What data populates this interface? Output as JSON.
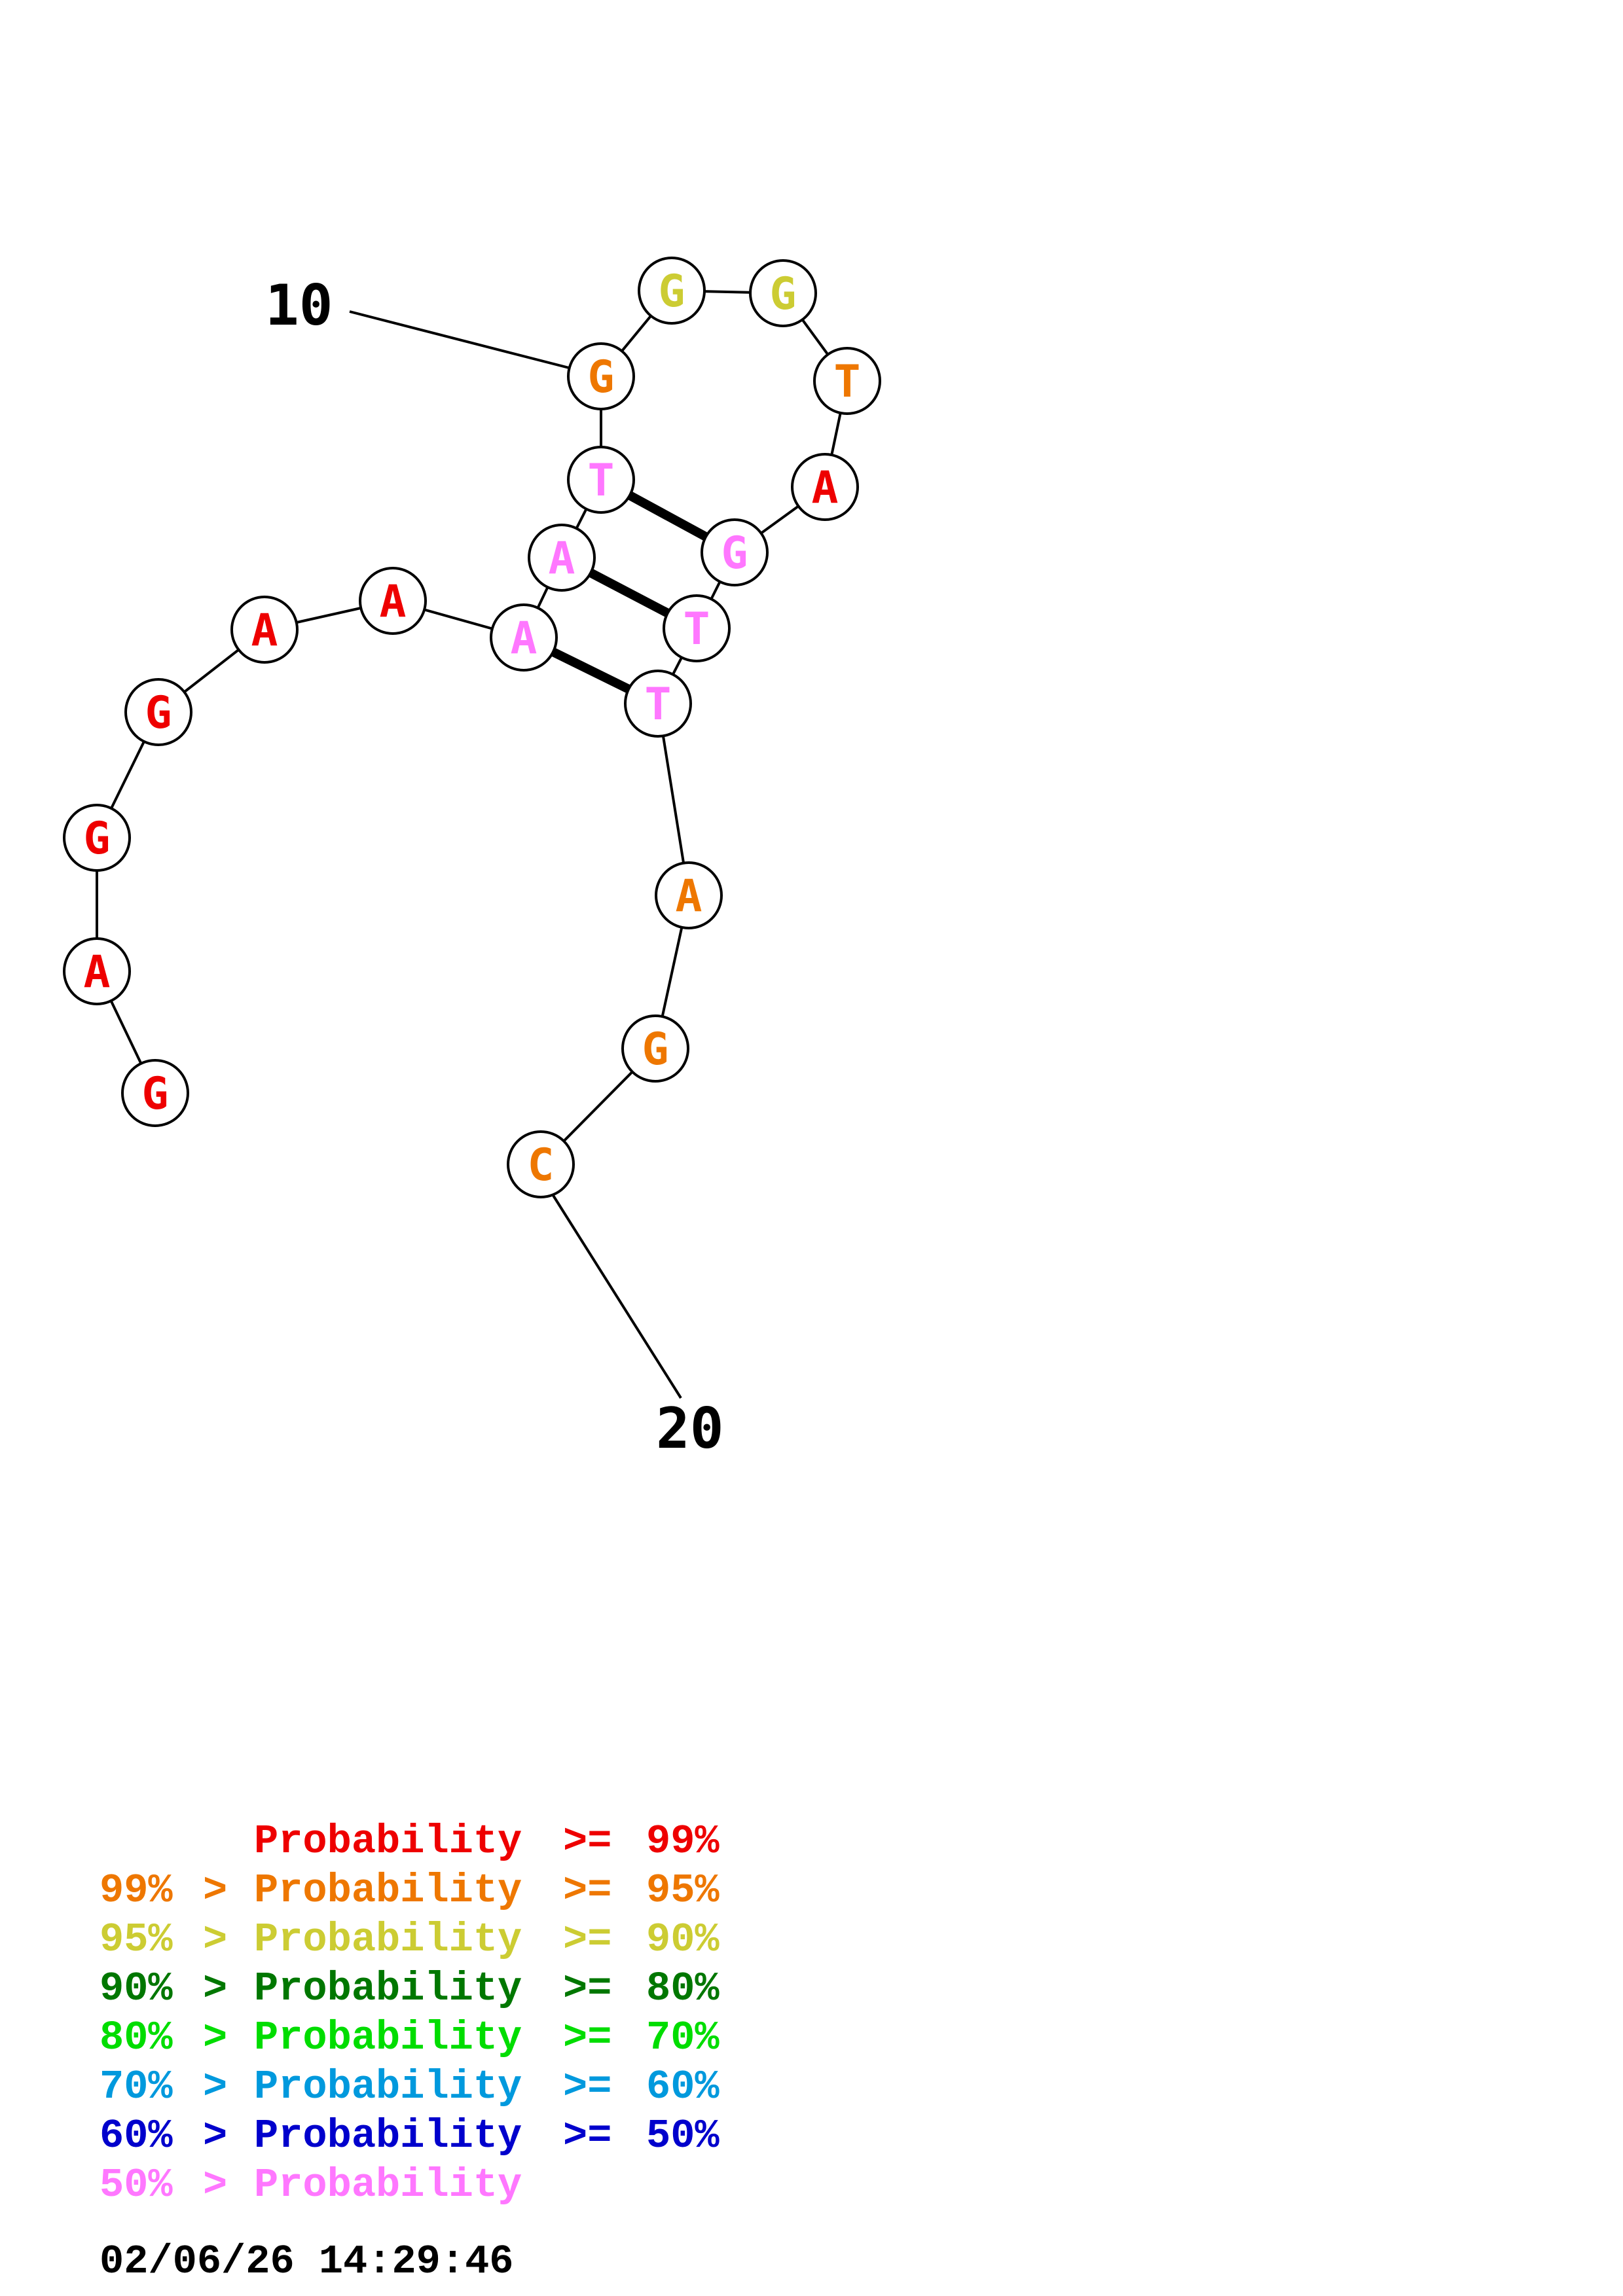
{
  "colors": {
    "p99": "#ee0000",
    "p95": "#ee7700",
    "p90": "#cccc33",
    "p80": "#007700",
    "p70": "#00dd00",
    "p60": "#0099dd",
    "p50": "#0000cc",
    "plow": "#ff77ff"
  },
  "structure": {
    "nucleotides": [
      {
        "base": "G",
        "prob": "p99"
      },
      {
        "base": "A",
        "prob": "p99"
      },
      {
        "base": "G",
        "prob": "p99"
      },
      {
        "base": "G",
        "prob": "p99"
      },
      {
        "base": "A",
        "prob": "p99"
      },
      {
        "base": "A",
        "prob": "p99"
      },
      {
        "base": "A",
        "prob": "plow"
      },
      {
        "base": "A",
        "prob": "plow"
      },
      {
        "base": "T",
        "prob": "plow"
      },
      {
        "base": "G",
        "prob": "p95"
      },
      {
        "base": "G",
        "prob": "p90"
      },
      {
        "base": "G",
        "prob": "p90"
      },
      {
        "base": "T",
        "prob": "p95"
      },
      {
        "base": "A",
        "prob": "p99"
      },
      {
        "base": "G",
        "prob": "plow"
      },
      {
        "base": "T",
        "prob": "plow"
      },
      {
        "base": "T",
        "prob": "plow"
      },
      {
        "base": "A",
        "prob": "p95"
      },
      {
        "base": "G",
        "prob": "p95"
      },
      {
        "base": "C",
        "prob": "p95"
      }
    ],
    "pairs": [
      [
        7,
        17
      ],
      [
        8,
        16
      ],
      [
        9,
        15
      ]
    ],
    "position_labels": [
      {
        "text": "10",
        "index": 10
      },
      {
        "text": "20",
        "index": 20
      }
    ]
  },
  "legend": [
    {
      "range": "",
      "sep": "",
      "label": "Probability",
      "op": ">=",
      "value": "99%",
      "prob": "p99"
    },
    {
      "range": "99%",
      "sep": ">",
      "label": "Probability",
      "op": ">=",
      "value": "95%",
      "prob": "p95"
    },
    {
      "range": "95%",
      "sep": ">",
      "label": "Probability",
      "op": ">=",
      "value": "90%",
      "prob": "p90"
    },
    {
      "range": "90%",
      "sep": ">",
      "label": "Probability",
      "op": ">=",
      "value": "80%",
      "prob": "p80"
    },
    {
      "range": "80%",
      "sep": ">",
      "label": "Probability",
      "op": ">=",
      "value": "70%",
      "prob": "p70"
    },
    {
      "range": "70%",
      "sep": ">",
      "label": "Probability",
      "op": ">=",
      "value": "60%",
      "prob": "p60"
    },
    {
      "range": "60%",
      "sep": ">",
      "label": "Probability",
      "op": ">=",
      "value": "50%",
      "prob": "p50"
    },
    {
      "range": "50%",
      "sep": ">",
      "label": "Probability",
      "op": "",
      "value": "",
      "prob": "plow"
    }
  ],
  "timestamp": "02/06/26 14:29:46"
}
